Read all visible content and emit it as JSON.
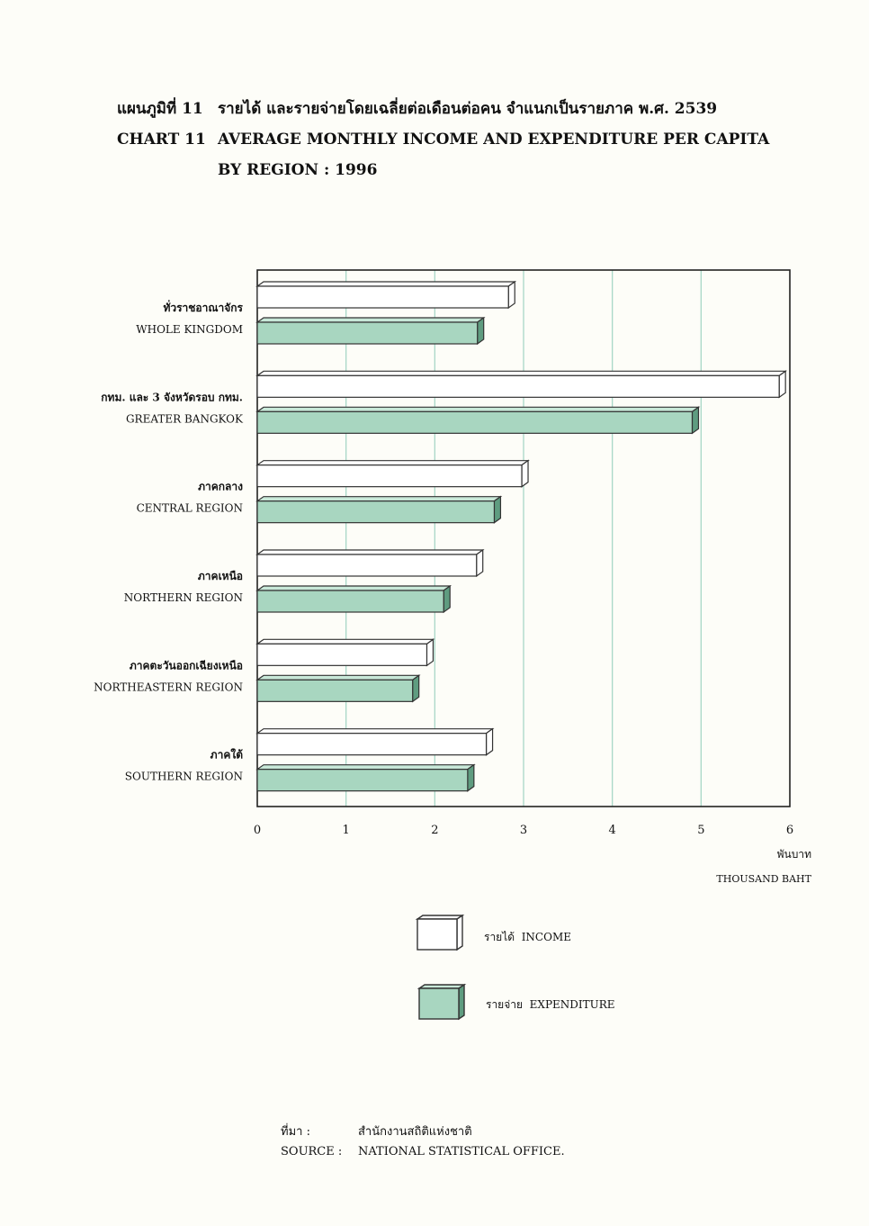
{
  "title": {
    "thai_label": "แผนภูมิที่ 11",
    "thai_text": "รายได้ และรายจ่ายโดยเฉลี่ยต่อเดือนต่อคน จำแนกเป็นรายภาค พ.ศ. 2539",
    "en_label": "CHART 11",
    "en_line1": "AVERAGE MONTHLY INCOME AND EXPENDITURE PER CAPITA",
    "en_line2": "BY REGION : 1996"
  },
  "chart_data": {
    "type": "bar",
    "orientation": "horizontal",
    "categories": [
      {
        "th": "ทั่วราชอาณาจักร",
        "en": "WHOLE KINGDOM"
      },
      {
        "th": "กทม. และ 3 จังหวัดรอบ กทม.",
        "en": "GREATER BANGKOK"
      },
      {
        "th": "ภาคกลาง",
        "en": "CENTRAL REGION"
      },
      {
        "th": "ภาคเหนือ",
        "en": "NORTHERN REGION"
      },
      {
        "th": "ภาคตะวันออกเฉียงเหนือ",
        "en": "NORTHEASTERN REGION"
      },
      {
        "th": "ภาคใต้",
        "en": "SOUTHERN REGION"
      }
    ],
    "series": [
      {
        "name": "รายได้ INCOME",
        "values": [
          2.83,
          5.88,
          2.98,
          2.47,
          1.91,
          2.58
        ],
        "color": "#ffffff"
      },
      {
        "name": "รายจ่าย EXPENDITURE",
        "values": [
          2.48,
          4.9,
          2.67,
          2.1,
          1.75,
          2.37
        ],
        "color": "#a8d6c0"
      }
    ],
    "xlim": [
      0,
      6
    ],
    "xticks": [
      "0",
      "1",
      "2",
      "3",
      "4",
      "5",
      "6"
    ],
    "xlabel_th": "พันบาท",
    "xlabel_en": "THOUSAND BAHT",
    "grid": "vertical",
    "legend": "bottom"
  },
  "legend": {
    "income_th": "รายได้",
    "income_en": "INCOME",
    "expenditure_th": "รายจ่าย",
    "expenditure_en": "EXPENDITURE"
  },
  "source": {
    "th_key": "ที่มา :",
    "th_value": "สำนักงานสถิติแห่งชาติ",
    "en_key": "SOURCE :",
    "en_value": "NATIONAL STATISTICAL OFFICE."
  },
  "colors": {
    "gridline": "#a8d8c8",
    "expenditure": "#a8d6c0",
    "expenditure_dark": "#5f9c80",
    "income": "#ffffff"
  }
}
